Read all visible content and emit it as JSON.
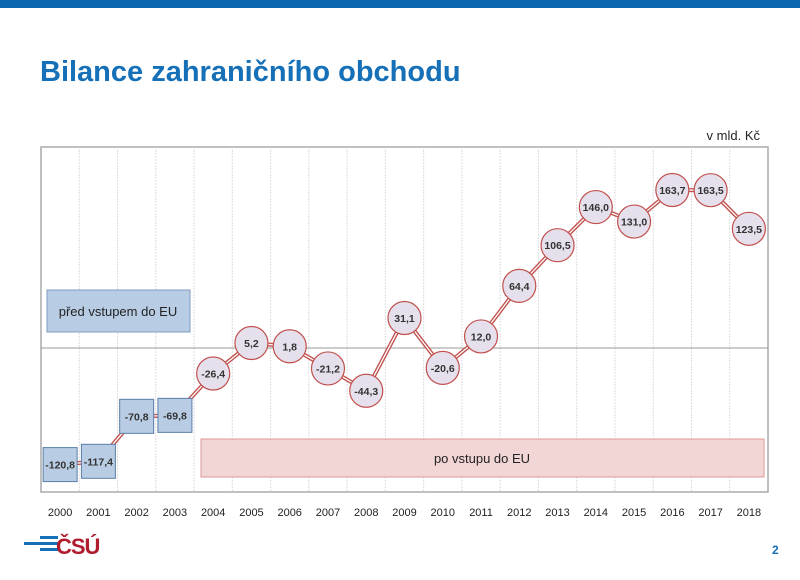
{
  "header": {
    "title": "Bilance zahraničního obchodu"
  },
  "footer": {
    "page_number": "2",
    "logo_text": "ČSÚ"
  },
  "colors": {
    "brand_blue": "#1570b8",
    "pre_eu_fill": "#b8cde4",
    "post_eu_fill": "#f2d6d6",
    "line": "#c0504d",
    "circle_fill": "#e6e0ec"
  },
  "chart_data": {
    "type": "line",
    "title": "",
    "unit_label": "v mld. Kč",
    "xlabel": "",
    "ylabel": "",
    "categories": [
      "2000",
      "2001",
      "2002",
      "2003",
      "2004",
      "2005",
      "2006",
      "2007",
      "2008",
      "2009",
      "2010",
      "2011",
      "2012",
      "2013",
      "2014",
      "2015",
      "2016",
      "2017",
      "2018"
    ],
    "values": [
      -120.8,
      -117.4,
      -70.8,
      -69.8,
      -26.4,
      5.2,
      1.8,
      -21.2,
      -44.3,
      31.1,
      -20.6,
      12.0,
      64.4,
      106.5,
      146.0,
      131.0,
      163.7,
      163.5,
      123.5
    ],
    "data_labels": [
      "-120,8",
      "-117,4",
      "-70,8",
      "-69,8",
      "-26,4",
      "5,2",
      "1,8",
      "-21,2",
      "-44,3",
      "31,1",
      "-20,6",
      "12,0",
      "64,4",
      "106,5",
      "146,0",
      "131,0",
      "163,7",
      "163,5",
      "123,5"
    ],
    "ylim": [
      -150,
      210
    ],
    "grid": {
      "vertical": true,
      "horizontal": false,
      "zero_line": true
    },
    "periods": [
      {
        "label": "před vstupem do EU",
        "years": [
          "2000",
          "2001",
          "2002",
          "2003"
        ],
        "marker": "square"
      },
      {
        "label": "po vstupu do EU",
        "years": [
          "2004",
          "2005",
          "2006",
          "2007",
          "2008",
          "2009",
          "2010",
          "2011",
          "2012",
          "2013",
          "2014",
          "2015",
          "2016",
          "2017",
          "2018"
        ],
        "marker": "circle"
      }
    ]
  }
}
